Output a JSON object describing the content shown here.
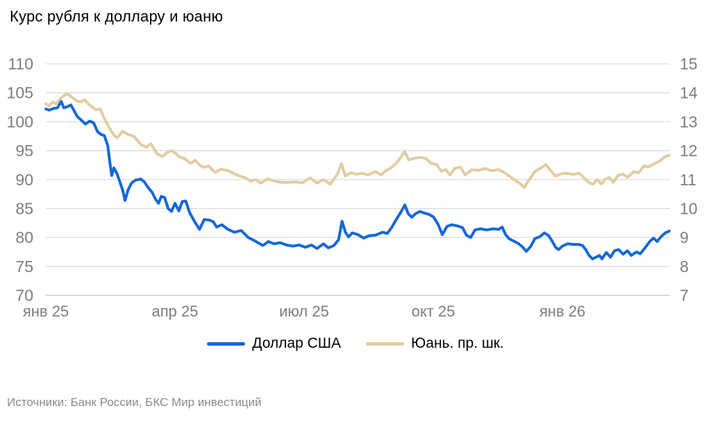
{
  "title": "Курс рубля к доллару и юаню",
  "source": "Источники: Банк России, БКС Мир инвестиций",
  "colors": {
    "usd_line": "#1568d9",
    "cny_line": "#e2cda1",
    "gridline": "#dcdcdc",
    "baseline": "#c4c4c4",
    "axis_text": "#7d7d7d",
    "title_text": "#000000",
    "source_text": "#8a8a8a"
  },
  "legend": {
    "items": [
      {
        "label": "Доллар США",
        "color": "#1568d9"
      },
      {
        "label": "Юань. пр. шк.",
        "color": "#e2cda1"
      }
    ]
  },
  "chart_data": {
    "type": "line",
    "title": "Курс рубля к доллару и юаню",
    "grid": "horizontal",
    "legend_position": "bottom",
    "x_axis": {
      "tick_labels": [
        "янв 25",
        "апр 25",
        "июл 25",
        "окт 25",
        "янв 26"
      ],
      "tick_positions_months": [
        0,
        3,
        6,
        9,
        12
      ],
      "domain_months": [
        0,
        14.5
      ]
    },
    "y_axis_left": {
      "series": "Доллар США",
      "range": [
        70,
        110
      ],
      "ticks": [
        110,
        105,
        100,
        95,
        90,
        85,
        80,
        75,
        70
      ]
    },
    "y_axis_right": {
      "series": "Юань. пр. шк.",
      "range": [
        7,
        15
      ],
      "ticks": [
        15,
        14,
        13,
        12,
        11,
        10,
        9,
        8,
        7
      ]
    },
    "series": [
      {
        "name": "Доллар США",
        "axis": "left",
        "color": "#1568d9",
        "points": [
          [
            0,
            102.2
          ],
          [
            0.08,
            102.0
          ],
          [
            0.18,
            102.3
          ],
          [
            0.27,
            102.4
          ],
          [
            0.36,
            103.5
          ],
          [
            0.42,
            102.4
          ],
          [
            0.5,
            102.6
          ],
          [
            0.58,
            102.9
          ],
          [
            0.65,
            102.0
          ],
          [
            0.73,
            100.9
          ],
          [
            0.82,
            100.3
          ],
          [
            0.92,
            99.6
          ],
          [
            1.02,
            100.1
          ],
          [
            1.11,
            99.8
          ],
          [
            1.2,
            98.3
          ],
          [
            1.28,
            97.8
          ],
          [
            1.36,
            97.6
          ],
          [
            1.44,
            95.8
          ],
          [
            1.49,
            92.8
          ],
          [
            1.53,
            90.7
          ],
          [
            1.58,
            92.0
          ],
          [
            1.65,
            91.1
          ],
          [
            1.71,
            89.8
          ],
          [
            1.78,
            88.3
          ],
          [
            1.84,
            86.4
          ],
          [
            1.91,
            88.2
          ],
          [
            1.99,
            89.4
          ],
          [
            2.08,
            89.9
          ],
          [
            2.2,
            90.1
          ],
          [
            2.29,
            89.6
          ],
          [
            2.37,
            88.7
          ],
          [
            2.47,
            87.8
          ],
          [
            2.55,
            86.6
          ],
          [
            2.62,
            85.9
          ],
          [
            2.68,
            87.1
          ],
          [
            2.76,
            86.9
          ],
          [
            2.84,
            85.0
          ],
          [
            2.92,
            84.5
          ],
          [
            3.0,
            85.9
          ],
          [
            3.09,
            84.6
          ],
          [
            3.17,
            86.2
          ],
          [
            3.25,
            86.3
          ],
          [
            3.34,
            84.3
          ],
          [
            3.46,
            82.7
          ],
          [
            3.57,
            81.4
          ],
          [
            3.68,
            83.1
          ],
          [
            3.8,
            83.0
          ],
          [
            3.89,
            82.7
          ],
          [
            3.97,
            81.8
          ],
          [
            4.09,
            82.2
          ],
          [
            4.23,
            81.4
          ],
          [
            4.38,
            80.9
          ],
          [
            4.54,
            81.2
          ],
          [
            4.7,
            80.0
          ],
          [
            4.86,
            79.4
          ],
          [
            5.04,
            78.6
          ],
          [
            5.17,
            79.3
          ],
          [
            5.3,
            78.9
          ],
          [
            5.44,
            79.1
          ],
          [
            5.59,
            78.7
          ],
          [
            5.74,
            78.5
          ],
          [
            5.88,
            78.7
          ],
          [
            6.03,
            78.3
          ],
          [
            6.17,
            78.7
          ],
          [
            6.3,
            78.1
          ],
          [
            6.45,
            78.9
          ],
          [
            6.56,
            78.2
          ],
          [
            6.69,
            78.6
          ],
          [
            6.8,
            79.6
          ],
          [
            6.88,
            82.8
          ],
          [
            6.96,
            80.9
          ],
          [
            7.03,
            80.1
          ],
          [
            7.12,
            80.8
          ],
          [
            7.25,
            80.5
          ],
          [
            7.38,
            79.9
          ],
          [
            7.51,
            80.3
          ],
          [
            7.66,
            80.4
          ],
          [
            7.82,
            80.9
          ],
          [
            7.93,
            80.7
          ],
          [
            8.03,
            81.7
          ],
          [
            8.14,
            83.1
          ],
          [
            8.25,
            84.4
          ],
          [
            8.34,
            85.6
          ],
          [
            8.42,
            84.1
          ],
          [
            8.5,
            83.5
          ],
          [
            8.59,
            84.1
          ],
          [
            8.69,
            84.5
          ],
          [
            8.8,
            84.2
          ],
          [
            8.9,
            84.0
          ],
          [
            9.01,
            83.5
          ],
          [
            9.11,
            82.3
          ],
          [
            9.21,
            80.5
          ],
          [
            9.32,
            81.9
          ],
          [
            9.43,
            82.2
          ],
          [
            9.56,
            82.0
          ],
          [
            9.68,
            81.7
          ],
          [
            9.77,
            80.4
          ],
          [
            9.87,
            80.0
          ],
          [
            9.97,
            81.3
          ],
          [
            10.1,
            81.5
          ],
          [
            10.24,
            81.3
          ],
          [
            10.39,
            81.5
          ],
          [
            10.52,
            81.4
          ],
          [
            10.6,
            81.8
          ],
          [
            10.68,
            80.5
          ],
          [
            10.76,
            79.8
          ],
          [
            10.86,
            79.4
          ],
          [
            10.97,
            79.0
          ],
          [
            11.07,
            78.4
          ],
          [
            11.16,
            77.6
          ],
          [
            11.26,
            78.4
          ],
          [
            11.36,
            79.8
          ],
          [
            11.47,
            80.1
          ],
          [
            11.58,
            80.8
          ],
          [
            11.68,
            80.3
          ],
          [
            11.76,
            79.4
          ],
          [
            11.84,
            78.3
          ],
          [
            11.91,
            77.9
          ],
          [
            12.0,
            78.5
          ],
          [
            12.12,
            78.9
          ],
          [
            12.25,
            78.8
          ],
          [
            12.37,
            78.8
          ],
          [
            12.47,
            78.6
          ],
          [
            12.54,
            77.9
          ],
          [
            12.62,
            76.9
          ],
          [
            12.7,
            76.3
          ],
          [
            12.78,
            76.6
          ],
          [
            12.86,
            76.9
          ],
          [
            12.92,
            76.3
          ],
          [
            13.02,
            77.4
          ],
          [
            13.12,
            76.6
          ],
          [
            13.21,
            77.7
          ],
          [
            13.31,
            77.9
          ],
          [
            13.41,
            77.1
          ],
          [
            13.51,
            77.7
          ],
          [
            13.6,
            76.9
          ],
          [
            13.72,
            77.5
          ],
          [
            13.81,
            77.2
          ],
          [
            13.92,
            78.2
          ],
          [
            14.04,
            79.4
          ],
          [
            14.12,
            79.9
          ],
          [
            14.2,
            79.3
          ],
          [
            14.3,
            80.2
          ],
          [
            14.39,
            80.8
          ],
          [
            14.48,
            81.1
          ]
        ]
      },
      {
        "name": "Юань. пр. шк.",
        "axis": "right",
        "color": "#e2cda1",
        "points": [
          [
            0,
            13.62
          ],
          [
            0.08,
            13.55
          ],
          [
            0.16,
            13.68
          ],
          [
            0.24,
            13.62
          ],
          [
            0.34,
            13.8
          ],
          [
            0.42,
            13.9
          ],
          [
            0.5,
            13.97
          ],
          [
            0.58,
            13.87
          ],
          [
            0.66,
            13.79
          ],
          [
            0.74,
            13.7
          ],
          [
            0.82,
            13.69
          ],
          [
            0.9,
            13.76
          ],
          [
            0.99,
            13.61
          ],
          [
            1.07,
            13.52
          ],
          [
            1.16,
            13.41
          ],
          [
            1.26,
            13.45
          ],
          [
            1.37,
            13.08
          ],
          [
            1.47,
            12.81
          ],
          [
            1.57,
            12.56
          ],
          [
            1.66,
            12.44
          ],
          [
            1.78,
            12.67
          ],
          [
            1.91,
            12.56
          ],
          [
            2.05,
            12.49
          ],
          [
            2.21,
            12.21
          ],
          [
            2.34,
            12.12
          ],
          [
            2.44,
            12.24
          ],
          [
            2.58,
            11.89
          ],
          [
            2.71,
            11.8
          ],
          [
            2.83,
            11.95
          ],
          [
            2.94,
            12.0
          ],
          [
            3.09,
            11.8
          ],
          [
            3.23,
            11.72
          ],
          [
            3.36,
            11.56
          ],
          [
            3.47,
            11.67
          ],
          [
            3.57,
            11.51
          ],
          [
            3.67,
            11.42
          ],
          [
            3.78,
            11.47
          ],
          [
            3.93,
            11.25
          ],
          [
            4.07,
            11.36
          ],
          [
            4.25,
            11.3
          ],
          [
            4.44,
            11.16
          ],
          [
            4.62,
            11.07
          ],
          [
            4.75,
            10.95
          ],
          [
            4.88,
            11.0
          ],
          [
            4.99,
            10.88
          ],
          [
            5.15,
            11.03
          ],
          [
            5.3,
            10.95
          ],
          [
            5.44,
            10.91
          ],
          [
            5.62,
            10.9
          ],
          [
            5.8,
            10.92
          ],
          [
            5.96,
            10.89
          ],
          [
            6.14,
            11.06
          ],
          [
            6.3,
            10.88
          ],
          [
            6.45,
            11.0
          ],
          [
            6.61,
            10.84
          ],
          [
            6.77,
            11.18
          ],
          [
            6.87,
            11.55
          ],
          [
            6.96,
            11.12
          ],
          [
            7.09,
            11.24
          ],
          [
            7.22,
            11.18
          ],
          [
            7.35,
            11.22
          ],
          [
            7.48,
            11.16
          ],
          [
            7.66,
            11.28
          ],
          [
            7.79,
            11.16
          ],
          [
            7.9,
            11.31
          ],
          [
            8.01,
            11.4
          ],
          [
            8.13,
            11.55
          ],
          [
            8.24,
            11.76
          ],
          [
            8.34,
            11.98
          ],
          [
            8.43,
            11.68
          ],
          [
            8.56,
            11.74
          ],
          [
            8.71,
            11.77
          ],
          [
            8.84,
            11.72
          ],
          [
            8.95,
            11.56
          ],
          [
            9.08,
            11.52
          ],
          [
            9.19,
            11.29
          ],
          [
            9.29,
            11.35
          ],
          [
            9.39,
            11.16
          ],
          [
            9.5,
            11.39
          ],
          [
            9.63,
            11.43
          ],
          [
            9.74,
            11.16
          ],
          [
            9.89,
            11.34
          ],
          [
            10.05,
            11.32
          ],
          [
            10.21,
            11.38
          ],
          [
            10.37,
            11.3
          ],
          [
            10.5,
            11.35
          ],
          [
            10.61,
            11.28
          ],
          [
            10.73,
            11.16
          ],
          [
            10.87,
            11.01
          ],
          [
            11.02,
            10.86
          ],
          [
            11.11,
            10.73
          ],
          [
            11.23,
            11.0
          ],
          [
            11.36,
            11.28
          ],
          [
            11.5,
            11.4
          ],
          [
            11.62,
            11.52
          ],
          [
            11.73,
            11.3
          ],
          [
            11.84,
            11.12
          ],
          [
            11.97,
            11.2
          ],
          [
            12.1,
            11.22
          ],
          [
            12.25,
            11.18
          ],
          [
            12.39,
            11.22
          ],
          [
            12.51,
            11.05
          ],
          [
            12.62,
            10.89
          ],
          [
            12.71,
            10.84
          ],
          [
            12.81,
            11.0
          ],
          [
            12.91,
            10.85
          ],
          [
            13.0,
            11.02
          ],
          [
            13.09,
            11.07
          ],
          [
            13.18,
            10.91
          ],
          [
            13.3,
            11.15
          ],
          [
            13.41,
            11.19
          ],
          [
            13.51,
            11.07
          ],
          [
            13.65,
            11.27
          ],
          [
            13.78,
            11.24
          ],
          [
            13.89,
            11.48
          ],
          [
            13.99,
            11.43
          ],
          [
            14.14,
            11.55
          ],
          [
            14.26,
            11.64
          ],
          [
            14.38,
            11.79
          ],
          [
            14.48,
            11.84
          ]
        ]
      }
    ]
  }
}
